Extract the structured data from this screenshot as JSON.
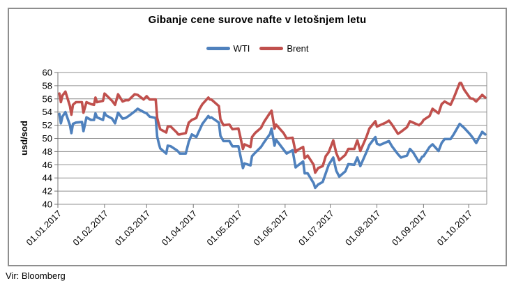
{
  "chart_data": {
    "type": "line",
    "title": "Gibanje cene surove nafte v letošnjem letu",
    "ylabel": "usd/sod",
    "xlabel": "",
    "source": "Vir: Bloomberg",
    "ylim": [
      40,
      60
    ],
    "ytick_step": 2,
    "grid": true,
    "legend_position": "top",
    "x_axis": {
      "day_range": [
        1,
        286
      ],
      "tick_days": [
        1,
        32,
        60,
        91,
        121,
        152,
        182,
        213,
        244,
        274
      ],
      "tick_labels": [
        "01.01.2017",
        "01.02.2017",
        "01.03.2017",
        "01.04.2017",
        "01.05.2017",
        "01.06.2017",
        "01.07.2017",
        "01.08.2017",
        "01.09.2017",
        "01.10.2017"
      ]
    },
    "x_days": [
      2,
      3,
      4,
      6,
      9,
      10,
      11,
      13,
      17,
      18,
      20,
      23,
      25,
      26,
      27,
      31,
      32,
      33,
      37,
      39,
      41,
      44,
      46,
      48,
      52,
      54,
      58,
      60,
      62,
      66,
      67,
      68,
      69,
      73,
      74,
      76,
      80,
      81,
      82,
      86,
      88,
      90,
      93,
      95,
      97,
      101,
      102,
      103,
      108,
      109,
      111,
      115,
      117,
      121,
      122,
      124,
      125,
      129,
      130,
      132,
      136,
      138,
      142,
      143,
      145,
      146,
      151,
      153,
      157,
      159,
      160,
      164,
      165,
      167,
      171,
      172,
      174,
      177,
      179,
      181,
      184,
      186,
      188,
      192,
      194,
      198,
      200,
      202,
      206,
      208,
      212,
      213,
      215,
      219,
      221,
      223,
      227,
      229,
      233,
      235,
      237,
      241,
      243,
      244,
      248,
      250,
      254,
      256,
      258,
      262,
      264,
      268,
      269,
      271,
      275,
      277,
      279,
      283,
      285
    ],
    "series": [
      {
        "name": "WTI",
        "color": "#4F81BD",
        "values": [
          53.7,
          52.3,
          53.3,
          54.0,
          52.0,
          50.8,
          52.2,
          52.4,
          52.5,
          51.1,
          53.2,
          52.8,
          52.8,
          53.8,
          53.2,
          52.8,
          53.9,
          53.5,
          53.0,
          52.3,
          53.9,
          53.0,
          53.1,
          53.4,
          54.1,
          54.5,
          54.0,
          53.8,
          53.3,
          53.1,
          50.3,
          49.3,
          48.5,
          47.7,
          48.9,
          48.8,
          48.2,
          48.0,
          47.7,
          47.7,
          49.5,
          50.6,
          50.2,
          51.2,
          52.2,
          53.4,
          53.1,
          53.2,
          52.4,
          50.4,
          49.6,
          49.6,
          48.8,
          48.8,
          47.7,
          45.5,
          46.2,
          45.9,
          47.3,
          47.8,
          48.7,
          49.4,
          50.7,
          51.5,
          48.9,
          49.8,
          48.3,
          47.7,
          48.2,
          45.6,
          45.8,
          46.5,
          44.7,
          44.7,
          43.2,
          42.5,
          43.0,
          43.4,
          44.7,
          46.0,
          47.1,
          45.1,
          44.2,
          45.0,
          46.1,
          46.0,
          47.1,
          45.8,
          47.9,
          49.0,
          50.2,
          49.2,
          49.0,
          49.4,
          49.6,
          48.8,
          47.6,
          47.1,
          47.4,
          48.4,
          47.9,
          46.4,
          47.2,
          47.3,
          48.7,
          49.1,
          48.1,
          49.3,
          49.9,
          49.9,
          50.6,
          52.2,
          52.0,
          51.6,
          50.6,
          50.0,
          49.3,
          51.0,
          50.6
        ]
      },
      {
        "name": "Brent",
        "color": "#C0504D",
        "values": [
          56.8,
          55.5,
          56.5,
          57.1,
          54.9,
          53.6,
          55.1,
          55.5,
          55.5,
          53.9,
          55.5,
          55.2,
          55.1,
          56.2,
          55.5,
          55.7,
          56.8,
          56.6,
          55.7,
          55.1,
          56.7,
          55.6,
          55.8,
          55.8,
          56.7,
          56.6,
          55.9,
          56.4,
          55.9,
          55.9,
          53.1,
          52.2,
          51.4,
          50.9,
          51.8,
          51.8,
          50.9,
          50.6,
          50.6,
          50.8,
          52.4,
          52.8,
          53.1,
          54.4,
          55.2,
          56.2,
          55.9,
          55.9,
          54.9,
          52.9,
          52.0,
          52.1,
          51.4,
          51.5,
          50.5,
          48.4,
          49.1,
          48.7,
          50.2,
          50.8,
          51.6,
          52.5,
          53.9,
          54.2,
          51.5,
          52.1,
          50.8,
          50.0,
          50.1,
          47.9,
          48.2,
          48.7,
          47.0,
          47.4,
          46.0,
          44.8,
          45.5,
          45.8,
          47.3,
          47.9,
          49.7,
          47.8,
          46.7,
          47.5,
          48.4,
          48.4,
          49.7,
          48.1,
          50.2,
          51.5,
          52.6,
          51.8,
          52.0,
          52.4,
          52.7,
          52.1,
          50.7,
          51.0,
          51.7,
          52.6,
          52.4,
          52.0,
          52.4,
          52.8,
          53.4,
          54.5,
          53.8,
          55.2,
          55.6,
          55.1,
          56.1,
          58.4,
          58.4,
          57.4,
          56.1,
          56.0,
          55.6,
          56.6,
          56.2
        ]
      }
    ],
    "style": {
      "gridline_color": "#8f8f8f",
      "axis_color": "#767676",
      "frame_color": "#8e8e8e",
      "tick_label_color": "#000000"
    }
  }
}
